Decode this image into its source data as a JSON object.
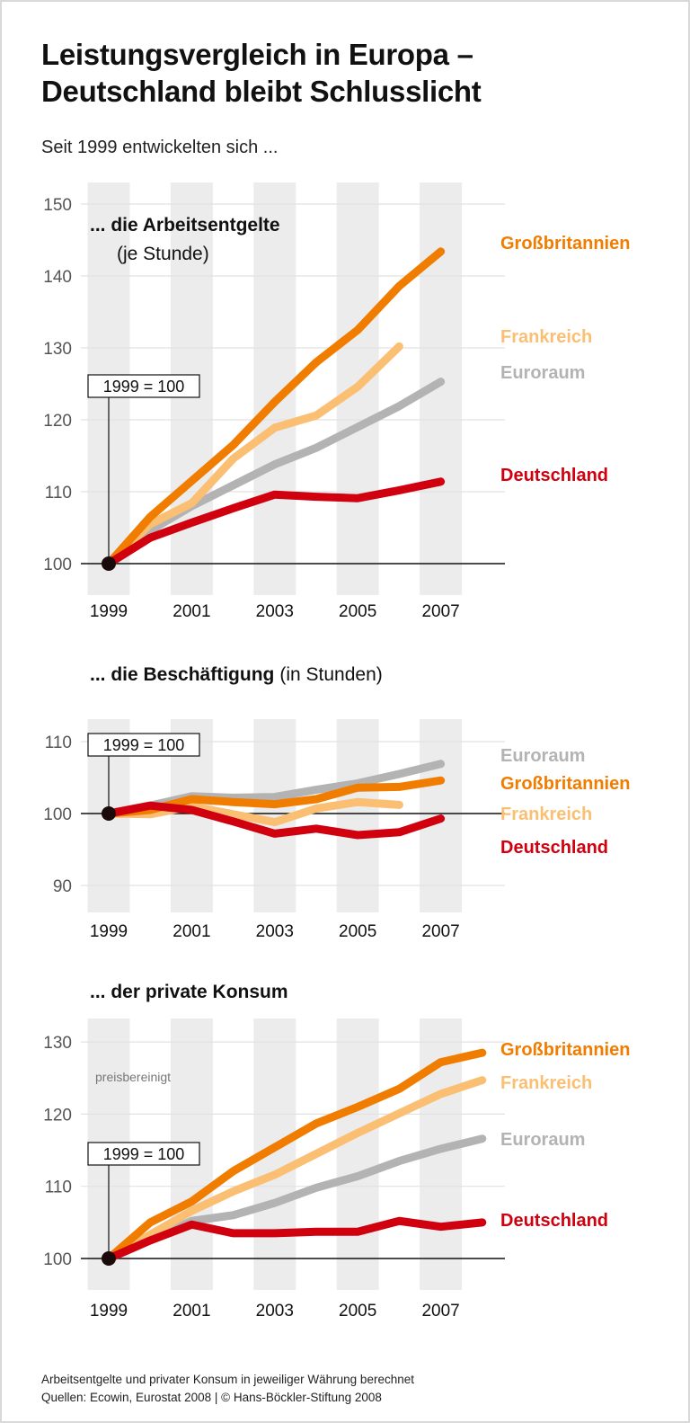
{
  "header": {
    "title_line1": "Leistungsvergleich in Europa –",
    "title_line2": "Deutschland bleibt Schlusslicht",
    "subtitle": "Seit 1999 entwickelten sich ..."
  },
  "footer": {
    "note": "Arbeitsentgelte und privater Konsum in jeweiliger Währung berechnet",
    "source": "Quellen: Ecowin, Eurostat 2008 | © Hans-Böckler-Stiftung 2008"
  },
  "colors": {
    "Großbritannien": "#f07d00",
    "Frankreich": "#fbbf73",
    "Euroraum": "#b3b3b3",
    "Deutschland": "#d0000f"
  },
  "chart_data": [
    {
      "type": "line",
      "title_bold": "... die Arbeitsentgelte",
      "title_normal": "(je Stunde)",
      "base_label": "1999 = 100",
      "ylim": [
        100,
        150
      ],
      "yticks": [
        100,
        110,
        120,
        130,
        140,
        150
      ],
      "xticks": [
        "1999",
        "2001",
        "2003",
        "2005",
        "2007"
      ],
      "series": [
        {
          "name": "Großbritannien",
          "x": [
            1999,
            2000,
            2001,
            2002,
            2003,
            2004,
            2005,
            2006,
            2007
          ],
          "values": [
            100,
            106.5,
            111.5,
            116.5,
            122.5,
            128,
            132.5,
            138.6,
            143.4
          ]
        },
        {
          "name": "Frankreich",
          "x": [
            1999,
            2000,
            2001,
            2002,
            2003,
            2004,
            2005,
            2006
          ],
          "values": [
            100,
            105.5,
            108.4,
            114.6,
            118.9,
            120.6,
            124.6,
            130.2
          ]
        },
        {
          "name": "Euroraum",
          "x": [
            1999,
            2000,
            2001,
            2002,
            2003,
            2004,
            2005,
            2006,
            2007
          ],
          "values": [
            100,
            104.6,
            108,
            110.9,
            113.8,
            116.1,
            119,
            121.9,
            125.3
          ]
        },
        {
          "name": "Deutschland",
          "x": [
            1999,
            2000,
            2001,
            2002,
            2003,
            2004,
            2005,
            2006,
            2007
          ],
          "values": [
            100,
            103.6,
            105.7,
            107.7,
            109.6,
            109.3,
            109.1,
            110.2,
            111.4
          ]
        }
      ]
    },
    {
      "type": "line",
      "title_bold": "... die Beschäftigung",
      "title_normal": "(in Stunden)",
      "base_label": "1999 = 100",
      "ylim": [
        90,
        110
      ],
      "yticks": [
        90,
        100,
        110
      ],
      "xticks": [
        "1999",
        "2001",
        "2003",
        "2005",
        "2007"
      ],
      "series": [
        {
          "name": "Euroraum",
          "x": [
            1999,
            2000,
            2001,
            2002,
            2003,
            2004,
            2005,
            2006,
            2007
          ],
          "values": [
            100,
            101.1,
            102.4,
            102.2,
            102.3,
            103.3,
            104.2,
            105.5,
            106.9
          ]
        },
        {
          "name": "Großbritannien",
          "x": [
            1999,
            2000,
            2001,
            2002,
            2003,
            2004,
            2005,
            2006,
            2007
          ],
          "values": [
            100,
            100.5,
            102,
            101.6,
            101.3,
            102,
            103.6,
            103.7,
            104.6
          ]
        },
        {
          "name": "Frankreich",
          "x": [
            1999,
            2000,
            2001,
            2002,
            2003,
            2004,
            2005,
            2006
          ],
          "values": [
            100,
            99.9,
            101,
            99.9,
            98.8,
            100.7,
            101.6,
            101.2
          ]
        },
        {
          "name": "Deutschland",
          "x": [
            1999,
            2000,
            2001,
            2002,
            2003,
            2004,
            2005,
            2006,
            2007
          ],
          "values": [
            100,
            101.1,
            100.5,
            98.9,
            97.2,
            97.9,
            97,
            97.4,
            99.3
          ]
        }
      ]
    },
    {
      "type": "line",
      "title_bold": "... der private Konsum",
      "title_normal": "",
      "annotation": "preisbereinigt",
      "base_label": "1999 = 100",
      "ylim": [
        100,
        130
      ],
      "yticks": [
        100,
        110,
        120,
        130
      ],
      "xticks": [
        "1999",
        "2001",
        "2003",
        "2005",
        "2007"
      ],
      "series": [
        {
          "name": "Großbritannien",
          "x": [
            1999,
            2000,
            2001,
            2002,
            2003,
            2004,
            2005,
            2006,
            2007,
            2008
          ],
          "values": [
            100,
            105,
            107.9,
            112.1,
            115.4,
            118.7,
            121,
            123.5,
            127.2,
            128.5
          ]
        },
        {
          "name": "Frankreich",
          "x": [
            1999,
            2000,
            2001,
            2002,
            2003,
            2004,
            2005,
            2006,
            2007,
            2008
          ],
          "values": [
            100,
            103.3,
            106.6,
            109.3,
            111.6,
            114.5,
            117.4,
            120.1,
            122.8,
            124.7
          ]
        },
        {
          "name": "Euroraum",
          "x": [
            1999,
            2000,
            2001,
            2002,
            2003,
            2004,
            2005,
            2006,
            2007,
            2008
          ],
          "values": [
            100,
            102.5,
            105.2,
            106,
            107.7,
            109.8,
            111.4,
            113.5,
            115.2,
            116.6
          ]
        },
        {
          "name": "Deutschland",
          "x": [
            1999,
            2000,
            2001,
            2002,
            2003,
            2004,
            2005,
            2006,
            2007,
            2008
          ],
          "values": [
            100,
            102.5,
            104.7,
            103.5,
            103.5,
            103.7,
            103.7,
            105.2,
            104.4,
            105
          ]
        }
      ]
    }
  ]
}
